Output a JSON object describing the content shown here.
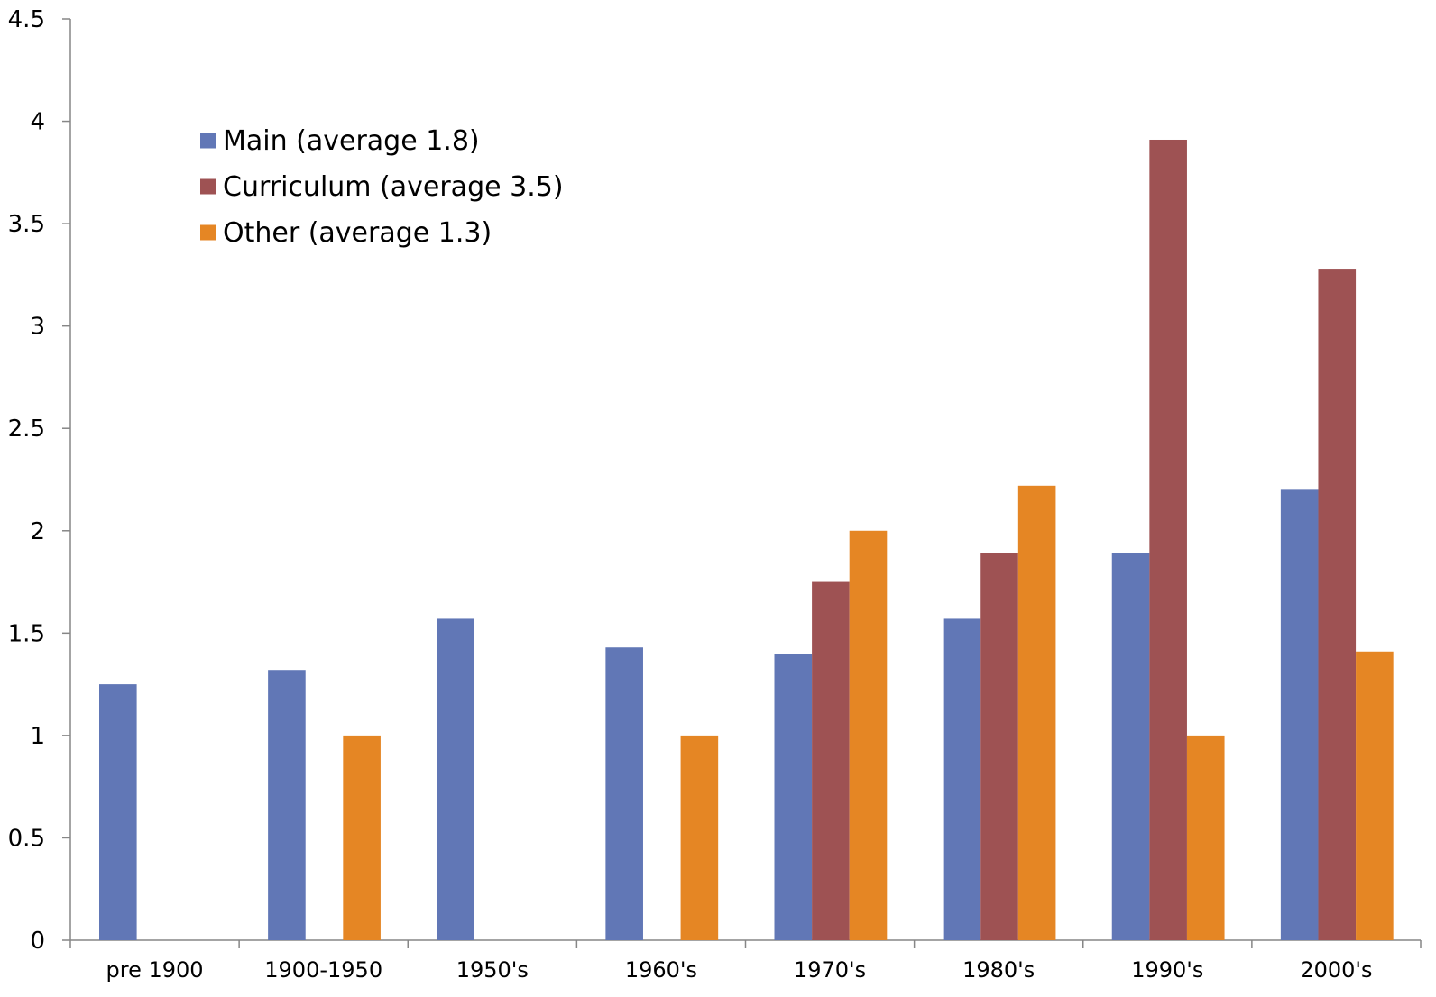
{
  "chart_data": {
    "type": "bar",
    "title": "",
    "xlabel": "",
    "ylabel": "",
    "ylim": [
      0,
      4.5
    ],
    "yticks": [
      "0",
      "0.5",
      "1",
      "1.5",
      "2",
      "2.5",
      "3",
      "3.5",
      "4",
      "4.5"
    ],
    "categories": [
      "pre 1900",
      "1900-1950",
      "1950's",
      "1960's",
      "1970's",
      "1980's",
      "1990's",
      "2000's"
    ],
    "series": [
      {
        "name": "Main (average 1.8)",
        "color": "#6177B6",
        "values": [
          1.25,
          1.32,
          1.57,
          1.43,
          1.4,
          1.57,
          1.89,
          2.2
        ]
      },
      {
        "name": "Curriculum (average 3.5)",
        "color": "#9E5253",
        "values": [
          null,
          null,
          null,
          null,
          1.75,
          1.89,
          3.91,
          3.28
        ]
      },
      {
        "name": "Other (average 1.3)",
        "color": "#E58624",
        "values": [
          null,
          1.0,
          null,
          1.0,
          2.0,
          2.22,
          1.0,
          1.41
        ]
      }
    ],
    "grid": false,
    "legend": "top-left"
  }
}
